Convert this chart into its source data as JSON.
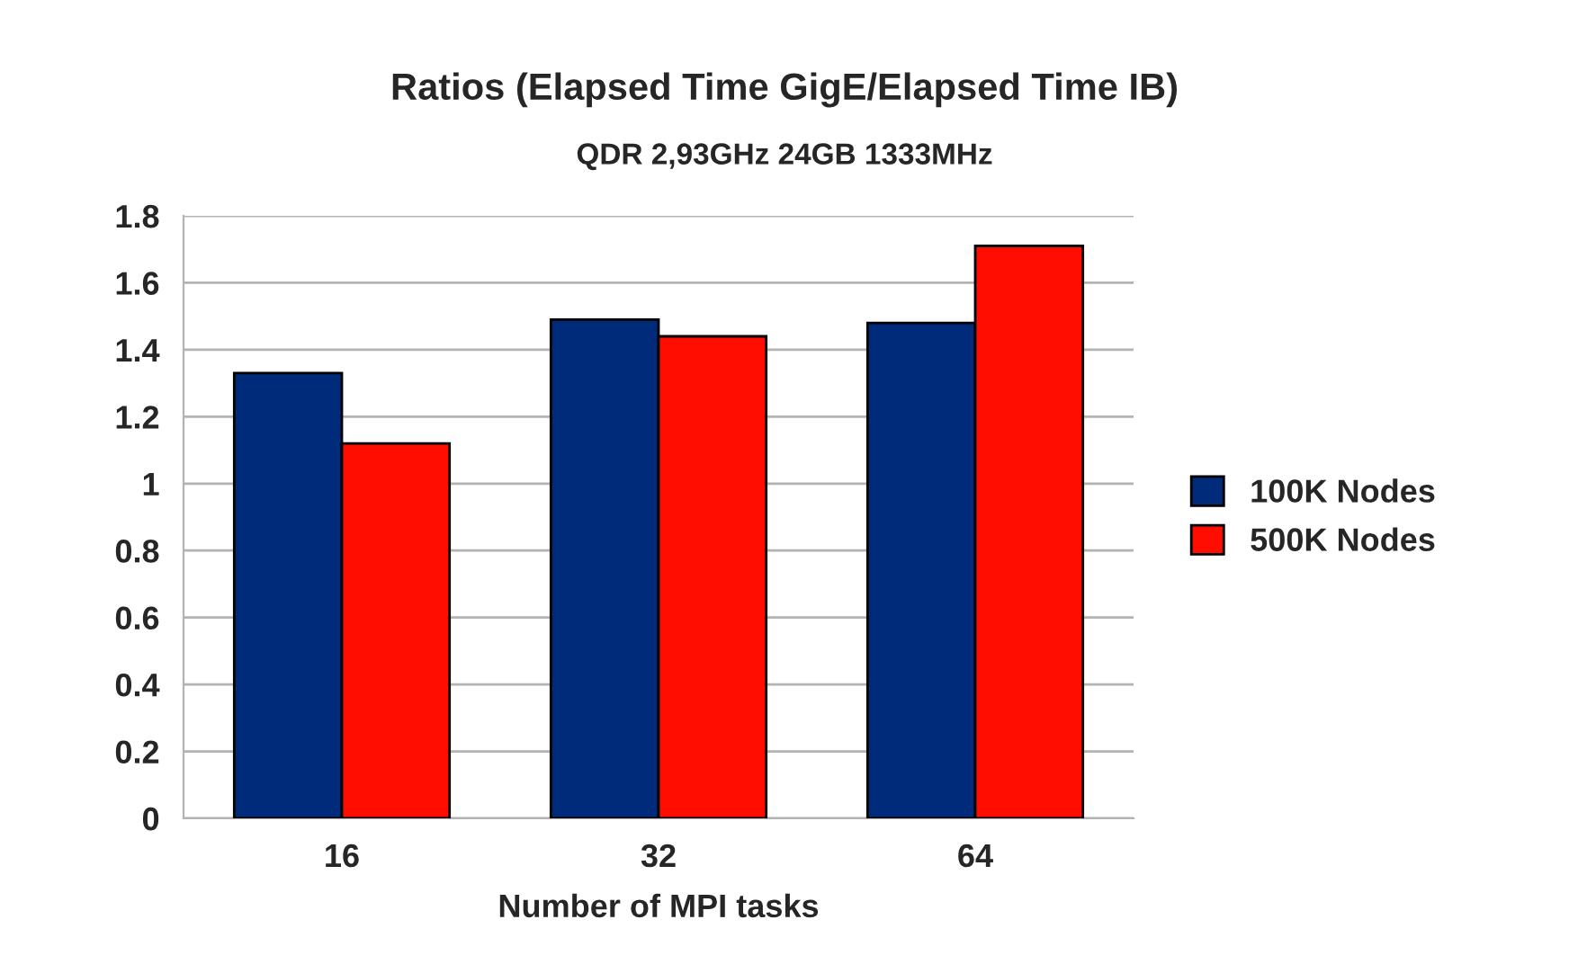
{
  "chart_data": {
    "type": "bar",
    "title": "Ratios (Elapsed Time GigE/Elapsed Time IB)",
    "subtitle": "QDR 2,93GHz 24GB 1333MHz",
    "xlabel": "Number of MPI tasks",
    "categories": [
      "16",
      "32",
      "64"
    ],
    "series": [
      {
        "name": "100K Nodes",
        "color": "#002b7a",
        "values": [
          1.33,
          1.49,
          1.48
        ]
      },
      {
        "name": "500K Nodes",
        "color": "#ff0d00",
        "values": [
          1.12,
          1.44,
          1.71
        ]
      }
    ],
    "ylim": [
      0,
      1.8
    ],
    "yticks": [
      0,
      {
        "value": 0.2,
        "label": "0.2"
      },
      {
        "value": 0.4,
        "label": "0.4"
      },
      {
        "value": 0.6,
        "label": "0.6"
      },
      {
        "value": 0.8,
        "label": "0.8"
      },
      1,
      {
        "value": 1.2,
        "label": "1.2"
      },
      {
        "value": 1.4,
        "label": "1.4"
      },
      {
        "value": 1.6,
        "label": "1.6"
      },
      {
        "value": 1.8,
        "label": "1.8"
      }
    ],
    "grid": "y",
    "legend": "right"
  }
}
